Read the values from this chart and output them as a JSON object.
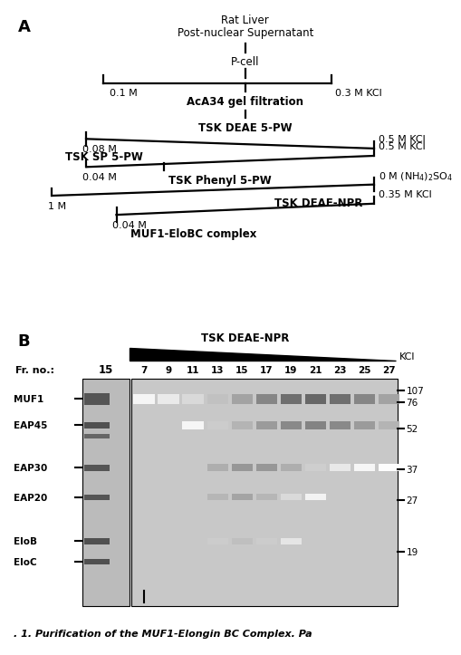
{
  "panel_A_elements": {
    "title1": "Rat Liver",
    "title2": "Post-nuclear Supernatant",
    "pcell": "P-cell",
    "bracket_left": "0.1 M",
    "bracket_right": "0.3 M KCl",
    "aca": "AcA34 gel filtration",
    "step1_label": "TSK DEAE 5-PW",
    "step1_left": "0.08 M",
    "step1_right": "0.5 M KCl",
    "step2_label": "TSK SP 5-PW",
    "step2_left": "0.04 M",
    "step2_right": "0.5 M KCl",
    "step3_label": "TSK Phenyl 5-PW",
    "step3_left": "1 M",
    "step3_right": "0 M (NH₄)₂SO₄",
    "step4_label": "TSK DEAE-NPR",
    "step4_left": "0.04 M",
    "step4_right": "0.35 M KCl",
    "final": "MUF1-EloBC complex"
  },
  "panel_B_elements": {
    "title": "TSK DEAE-NPR",
    "kcl_label": "KCl",
    "fr_label": "Fr. no.:",
    "fr_num": "15",
    "lane_numbers": [
      "7",
      "9",
      "11",
      "13",
      "15",
      "17",
      "19",
      "21",
      "23",
      "25",
      "27"
    ],
    "protein_labels": [
      "MUF1",
      "EAP45",
      "EAP30",
      "EAP20",
      "EloB",
      "EloC"
    ],
    "mw_markers": [
      "107",
      "76",
      "52",
      "37",
      "27",
      "19"
    ]
  },
  "caption": ". 1. Purification of the MUF1-Elongin BC Complex. Pa",
  "bg_color": "#ffffff"
}
